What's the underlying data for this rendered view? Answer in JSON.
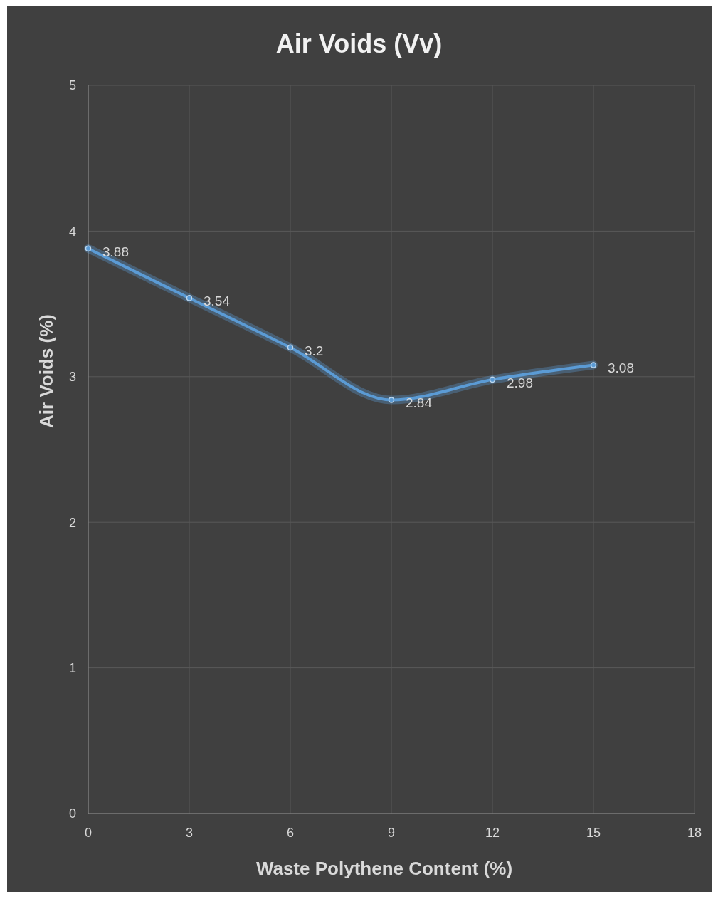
{
  "chart_data": {
    "type": "line",
    "title": "Air Voids (Vv)",
    "xlabel": "Waste Polythene Content (%)",
    "ylabel": "Air Voids (%)",
    "x": [
      0,
      3,
      6,
      9,
      12,
      15
    ],
    "series": [
      {
        "color": "#5b9bd5",
        "values": [
          3.88,
          3.54,
          3.2,
          2.84,
          2.98,
          3.08
        ]
      }
    ],
    "xlim": [
      0,
      18
    ],
    "xticks": [
      0,
      3,
      6,
      9,
      12,
      15,
      18
    ],
    "ylim": [
      0,
      5
    ],
    "yticks": [
      0,
      1,
      2,
      3,
      4,
      5
    ],
    "grid": true,
    "marker": "circle",
    "data_labels": true
  }
}
